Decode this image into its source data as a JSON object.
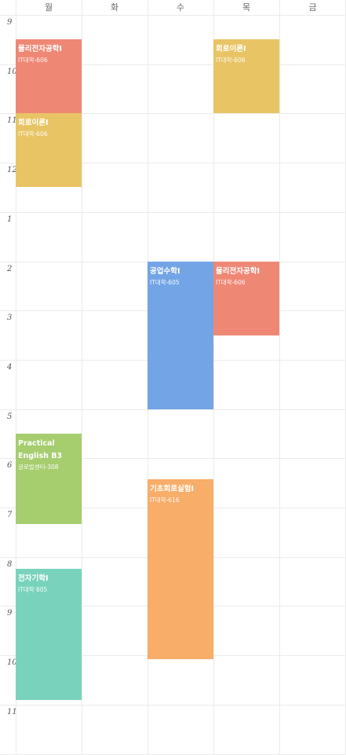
{
  "days": [
    "월",
    "화",
    "수",
    "목",
    "금"
  ],
  "hours": [
    "9",
    "10",
    "11",
    "12",
    "1",
    "2",
    "3",
    "4",
    "5",
    "6",
    "7",
    "8",
    "9",
    "10",
    "11"
  ],
  "events": [
    {
      "day": 0,
      "start": 9.5,
      "end": 11.0,
      "title": "물리전자공학I",
      "room": "IT대학-606",
      "color": "#ef8775"
    },
    {
      "day": 3,
      "start": 9.5,
      "end": 11.0,
      "title": "회로이론I",
      "room": "IT대학-606",
      "color": "#e8c465"
    },
    {
      "day": 0,
      "start": 11.0,
      "end": 12.5,
      "title": "회로이론I",
      "room": "IT대학-606",
      "color": "#e8c465"
    },
    {
      "day": 2,
      "start": 14.0,
      "end": 17.0,
      "title": "공업수학I",
      "room": "IT대학-605",
      "color": "#72a4e6"
    },
    {
      "day": 3,
      "start": 14.0,
      "end": 15.5,
      "title": "물리전자공학I",
      "room": "IT대학-606",
      "color": "#ef8775"
    },
    {
      "day": 0,
      "start": 17.5,
      "end": 19.33,
      "title": "Practical English B3",
      "room": "글로벌센터-308",
      "color": "#a6cd6e"
    },
    {
      "day": 2,
      "start": 18.42,
      "end": 22.08,
      "title": "기초회로실험I",
      "room": "IT대학-616",
      "color": "#f8ad69"
    },
    {
      "day": 0,
      "start": 20.25,
      "end": 22.92,
      "title": "전자기학I",
      "room": "IT대학 605",
      "color": "#79d3bc"
    }
  ]
}
